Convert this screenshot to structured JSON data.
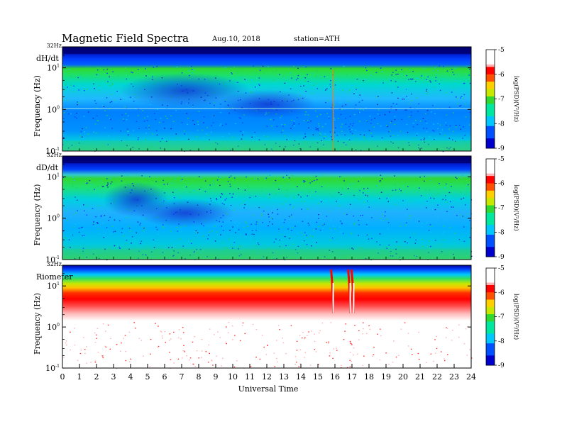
{
  "header": {
    "title": "Magnetic  Field  Spectra",
    "date": "Aug.10, 2018",
    "station": "station=ATH"
  },
  "x_axis": {
    "label": "Universal  Time",
    "ticks": [
      "0",
      "1",
      "2",
      "3",
      "4",
      "5",
      "6",
      "7",
      "8",
      "9",
      "10",
      "11",
      "12",
      "13",
      "14",
      "15",
      "16",
      "17",
      "18",
      "19",
      "20",
      "21",
      "22",
      "23",
      "24"
    ]
  },
  "y_axis": {
    "label": "Frequency  (Hz)",
    "top_label": "32Hz",
    "tick_labels": [
      {
        "base": "10",
        "exp": "1"
      },
      {
        "base": "10",
        "exp": "0"
      },
      {
        "base": "10",
        "exp": "-1"
      }
    ]
  },
  "colorbar": {
    "label": "log(PSD)(V²/Hz)",
    "ticks": [
      "-5",
      "-6",
      "-7",
      "-8",
      "-9"
    ],
    "colors": [
      "#000040",
      "#0000cc",
      "#0050ff",
      "#00c8ff",
      "#00e8c0",
      "#30d830",
      "#c8e800",
      "#ffd000",
      "#ff5000",
      "#ff0000",
      "#ffb0b0",
      "#ffffff"
    ]
  },
  "chart_data": [
    {
      "type": "heatmap",
      "panel": "dH/dt",
      "x_range": [
        0,
        24
      ],
      "y_range_hz": [
        0.1,
        32
      ],
      "y_scale": "log",
      "z_range_log_psd": [
        -9,
        -5
      ],
      "description_values": {
        "band_above_10hz_log_psd": -8.6,
        "band_2_to_10hz_log_psd": -7.1,
        "below_1hz_log_psd": -7.8,
        "line_at_1hz_present": true,
        "spike_near_ut": 15.9
      }
    },
    {
      "type": "heatmap",
      "panel": "dD/dt",
      "x_range": [
        0,
        24
      ],
      "y_range_hz": [
        0.1,
        32
      ],
      "y_scale": "log",
      "z_range_log_psd": [
        -9,
        -5
      ],
      "description_values": {
        "band_above_10hz_log_psd": -8.7,
        "band_2_to_10hz_log_psd": -7.0,
        "below_1hz_log_psd": -7.8
      }
    },
    {
      "type": "heatmap",
      "panel": "Riometer",
      "x_range": [
        0,
        24
      ],
      "y_range_hz": [
        0.1,
        32
      ],
      "y_scale": "log",
      "z_range_log_psd": [
        -9,
        -5
      ],
      "description_values": {
        "band_above_10hz_log_psd": -7.5,
        "band_3_to_8hz_log_psd": -5.6,
        "below_1hz_log_psd": -5.0,
        "events_ut": [
          15.9,
          16.9,
          17.1
        ]
      }
    }
  ]
}
